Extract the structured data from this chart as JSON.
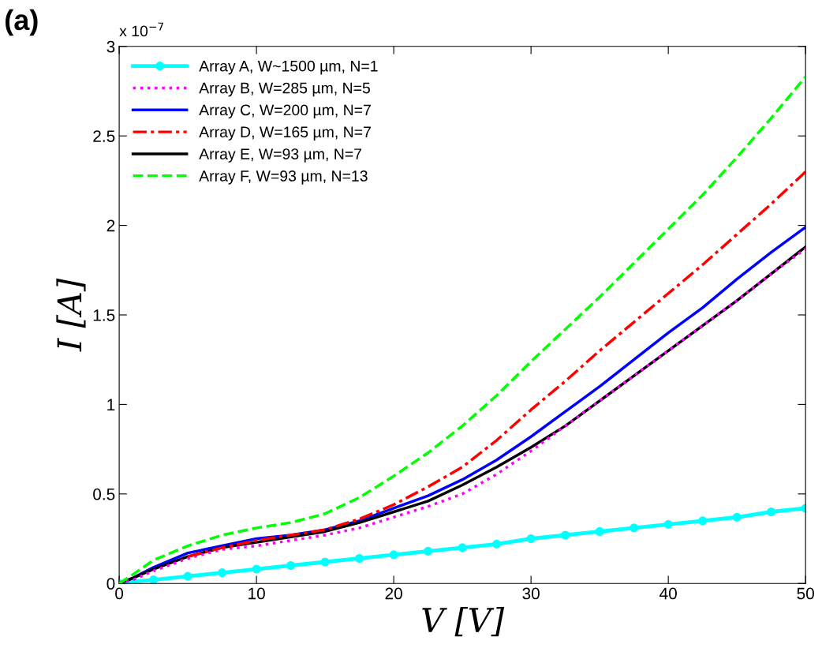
{
  "chart_data": {
    "type": "line",
    "xlabel": "V [V]",
    "ylabel": "I [A]",
    "annotations": [
      "(a)",
      "x 10$^{−7}$"
    ],
    "x": [
      0,
      1,
      2.5,
      5,
      7.5,
      10,
      12.5,
      15,
      17.5,
      20,
      22.5,
      25,
      27.5,
      30,
      32.5,
      35,
      37.5,
      40,
      42.5,
      45,
      47.5,
      50
    ],
    "series": [
      {
        "name": "Array A, W~1500 µm, N=1",
        "color": "#00ffff",
        "marker": "circle",
        "line_style": "solid",
        "values": [
          0,
          0.01,
          0.02,
          0.04,
          0.06,
          0.08,
          0.1,
          0.12,
          0.14,
          0.16,
          0.18,
          0.2,
          0.22,
          0.25,
          0.27,
          0.29,
          0.31,
          0.33,
          0.35,
          0.37,
          0.4,
          0.42
        ]
      },
      {
        "name": "Array B, W=285 µm, N=5",
        "color": "#ff00ff",
        "line_style": "dotted",
        "values": [
          0,
          0.02,
          0.07,
          0.14,
          0.19,
          0.21,
          0.24,
          0.27,
          0.31,
          0.37,
          0.43,
          0.5,
          0.61,
          0.74,
          0.88,
          1.02,
          1.16,
          1.3,
          1.44,
          1.58,
          1.73,
          1.87
        ]
      },
      {
        "name": "Array C, W=200 µm, N=7",
        "color": "#0000ff",
        "line_style": "solid",
        "values": [
          0,
          0.03,
          0.09,
          0.17,
          0.21,
          0.25,
          0.27,
          0.3,
          0.35,
          0.42,
          0.49,
          0.58,
          0.69,
          0.82,
          0.96,
          1.1,
          1.25,
          1.4,
          1.54,
          1.7,
          1.85,
          1.99
        ]
      },
      {
        "name": "Array D, W=165 µm, N=7",
        "color": "#ff0000",
        "line_style": "dashdot",
        "values": [
          null,
          null,
          null,
          0.15,
          0.2,
          0.24,
          0.27,
          0.3,
          0.36,
          0.44,
          0.54,
          0.65,
          0.8,
          0.97,
          1.13,
          1.3,
          1.46,
          1.62,
          1.78,
          1.95,
          2.12,
          2.3
        ]
      },
      {
        "name": "Array E, W=93 µm, N=7",
        "color": "#000000",
        "line_style": "solid",
        "values": [
          0,
          0.03,
          0.08,
          0.15,
          0.2,
          0.23,
          0.26,
          0.29,
          0.34,
          0.4,
          0.46,
          0.55,
          0.65,
          0.76,
          0.88,
          1.02,
          1.16,
          1.3,
          1.44,
          1.58,
          1.73,
          1.88
        ]
      },
      {
        "name": "Array F, W=93 µm, N=13",
        "color": "#00ff00",
        "line_style": "dashed",
        "values": [
          0,
          0.05,
          0.13,
          0.21,
          0.27,
          0.31,
          0.34,
          0.39,
          0.48,
          0.6,
          0.73,
          0.88,
          1.05,
          1.24,
          1.42,
          1.6,
          1.79,
          1.98,
          2.17,
          2.38,
          2.6,
          2.83
        ]
      }
    ],
    "xlim": [
      0,
      50
    ],
    "xticks": [
      0,
      10,
      20,
      30,
      40,
      50
    ],
    "ylim": [
      0,
      3
    ],
    "yticks": [
      0,
      0.5,
      1,
      1.5,
      2,
      2.5,
      3
    ],
    "grid": false,
    "legend": "top left"
  }
}
